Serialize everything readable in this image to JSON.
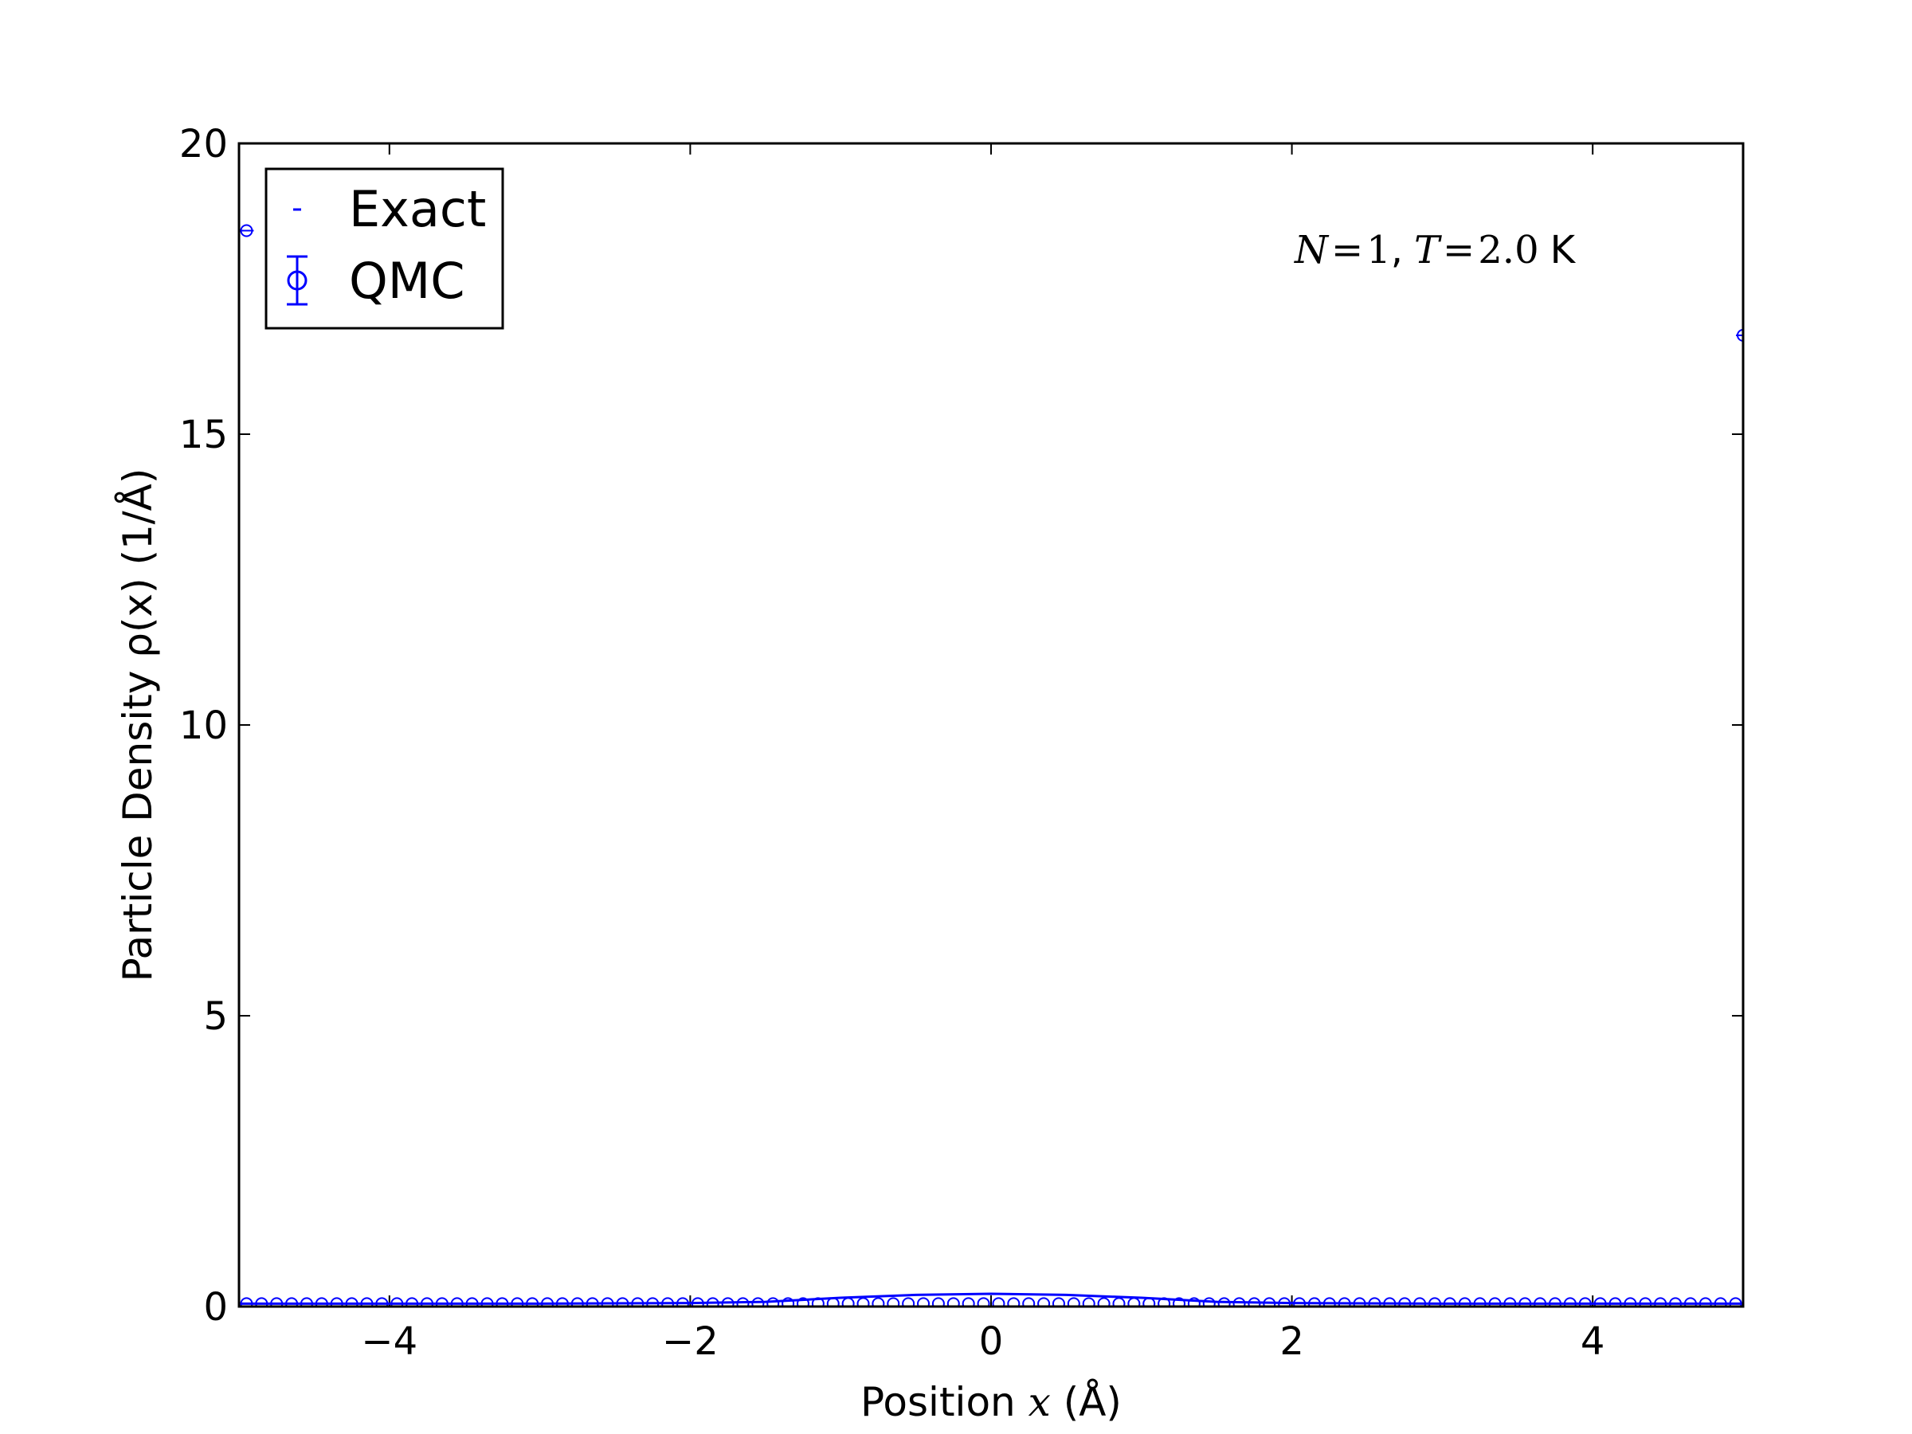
{
  "chart_data": {
    "type": "scatter",
    "xlabel_prefix": "Position ",
    "xlabel_var": "x",
    "xlabel_suffix": " (Å)",
    "ylabel": "Particle Density ρ(x) (1/Å)",
    "xlim": [
      -5,
      5
    ],
    "ylim": [
      0,
      20
    ],
    "xticks": [
      -4,
      -2,
      0,
      2,
      4
    ],
    "xtick_labels": [
      "−4",
      "−2",
      "0",
      "2",
      "4"
    ],
    "yticks": [
      0,
      5,
      10,
      15,
      20
    ],
    "ytick_labels": [
      "0",
      "5",
      "10",
      "15",
      "20"
    ],
    "grid": false,
    "legend_position": "top-left",
    "annotation": {
      "n_var": "N",
      "n_eq": "=",
      "n_val": "1",
      "sep": ",",
      "t_var": "T",
      "t_eq": "=",
      "t_val": "2.0",
      "unit": "K"
    },
    "color": "#0000ff",
    "series": [
      {
        "name": "Exact",
        "kind": "line",
        "x": [
          -5,
          -4,
          -3,
          -2,
          -1.5,
          -1,
          -0.5,
          0,
          0.5,
          1,
          1.5,
          2,
          3,
          4,
          5
        ],
        "y": [
          0.05,
          0.05,
          0.05,
          0.06,
          0.08,
          0.15,
          0.2,
          0.22,
          0.2,
          0.15,
          0.08,
          0.06,
          0.05,
          0.05,
          0.05
        ]
      },
      {
        "name": "QMC",
        "kind": "errorbar-markers",
        "x_start": -4.95,
        "x_step": 0.1,
        "count": 100,
        "baseline": 0.05,
        "extra_points": [
          {
            "x": -4.95,
            "y": 18.5
          },
          {
            "x": 5.0,
            "y": 16.7
          }
        ]
      }
    ]
  }
}
